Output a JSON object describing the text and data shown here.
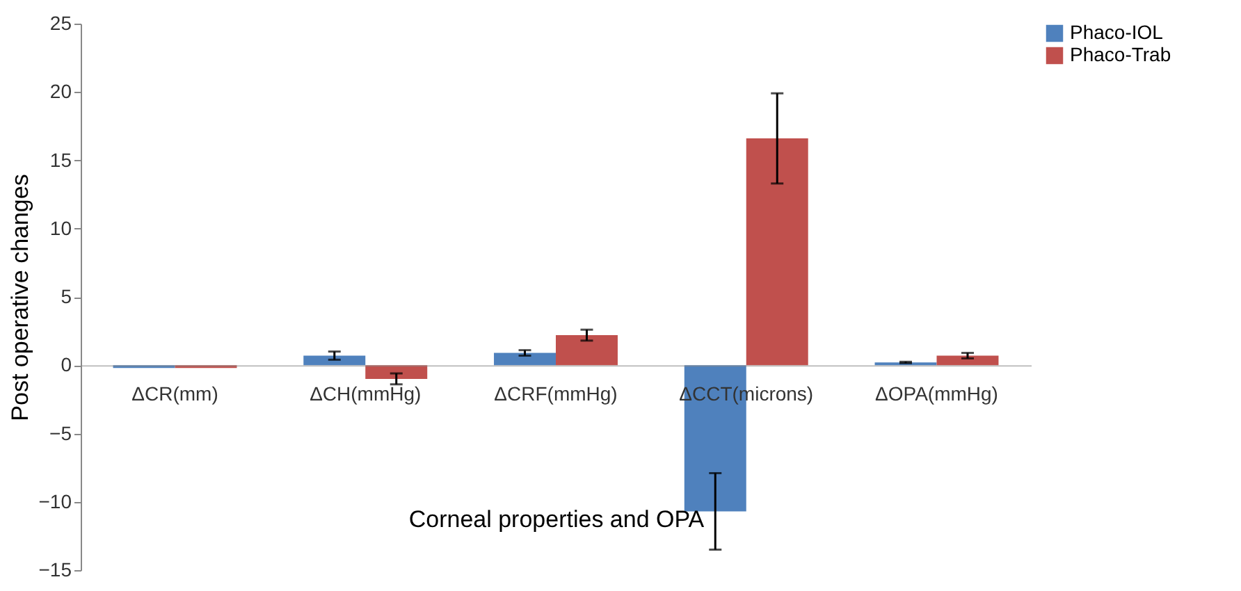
{
  "chart_data": {
    "type": "bar",
    "xlabel": "Corneal properties and OPA",
    "ylabel": "Post operative changes",
    "categories": [
      "ΔCR(mm)",
      "ΔCH(mmHg)",
      "ΔCRF(mmHg)",
      "ΔCCT(microns)",
      "ΔOPA(mmHg)"
    ],
    "series": [
      {
        "name": "Phaco-IOL",
        "color": "#4f81bd",
        "values": [
          -0.2,
          0.7,
          0.9,
          -10.7,
          0.2
        ],
        "errors": [
          null,
          0.3,
          0.2,
          2.8,
          0.05
        ]
      },
      {
        "name": "Phaco-Trab",
        "color": "#c0504d",
        "values": [
          -0.2,
          -1.0,
          2.2,
          16.6,
          0.7
        ],
        "errors": [
          null,
          0.4,
          0.4,
          3.3,
          0.2
        ]
      }
    ],
    "ylim": [
      -15,
      25
    ],
    "yticks": [
      -15,
      -10,
      -5,
      0,
      5,
      10,
      15,
      20,
      25
    ],
    "grid": false,
    "legend": "right"
  }
}
